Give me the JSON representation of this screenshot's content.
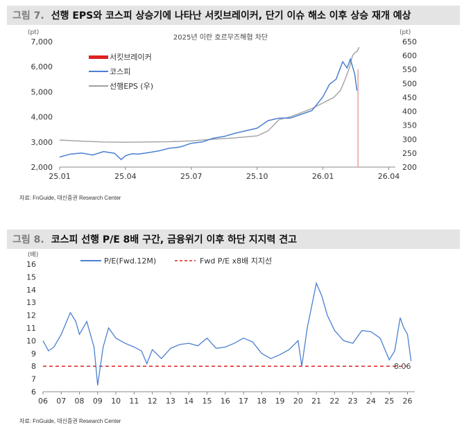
{
  "figure7": {
    "number": "그림 7.",
    "title": "선행 EPS와 코스피 상승기에 나타난 서킷브레이커, 단기 이슈 해소 이후 상승 재개 예상",
    "source": "자료: FnGuide, 대신증권 Research Center"
  },
  "figure8": {
    "number": "그림 8.",
    "title": "코스피 선행 P/E 8배 구간, 금융위기 이후 하단 지지력 견고",
    "source": "자료: FnGuide, 대신증권 Research Center"
  },
  "colors": {
    "blue": "#4a7fd0",
    "gray": "#a0a0a0",
    "red": "#e02020",
    "pink": "#e8a0a0"
  },
  "chart_data": [
    {
      "type": "line",
      "annotation": "2025년 이란 호르무즈해협 차단",
      "y_unit_left": "(pt)",
      "y_unit_right": "(pt)",
      "ylim": [
        2000,
        7000
      ],
      "ylim_right": [
        200,
        650
      ],
      "yticks": [
        "2,000",
        "3,000",
        "4,000",
        "5,000",
        "6,000",
        "7,000"
      ],
      "yticks_right": [
        "200",
        "250",
        "300",
        "350",
        "400",
        "450",
        "500",
        "550",
        "600",
        "650"
      ],
      "xticks": [
        "25.01",
        "25.04",
        "25.07",
        "25.10",
        "26.01",
        "26.04"
      ],
      "xlim": [
        0,
        15.3
      ],
      "marker_x": 13.6,
      "series": [
        {
          "name": "서킷브레이커",
          "axis": "left",
          "style": "bar",
          "values": []
        },
        {
          "name": "코스피",
          "axis": "left",
          "x": [
            0,
            0.5,
            1,
            1.5,
            2,
            2.5,
            2.8,
            3,
            3.3,
            3.6,
            4,
            4.5,
            5,
            5.5,
            6,
            6.5,
            7,
            7.5,
            8,
            8.5,
            9,
            9.5,
            10,
            10.5,
            11,
            11.5,
            12,
            12.3,
            12.6,
            12.9,
            13.1,
            13.25,
            13.35,
            13.45,
            13.55
          ],
          "values": [
            2400,
            2520,
            2560,
            2480,
            2620,
            2550,
            2300,
            2450,
            2530,
            2520,
            2570,
            2640,
            2750,
            2800,
            2950,
            3000,
            3150,
            3220,
            3350,
            3450,
            3550,
            3850,
            3950,
            3950,
            4100,
            4250,
            4800,
            5300,
            5500,
            6200,
            5950,
            6300,
            6000,
            5700,
            5050
          ]
        },
        {
          "name": "선행EPS (우)",
          "axis": "right",
          "x": [
            0,
            1,
            2,
            3,
            4,
            5,
            6,
            7,
            8,
            9,
            9.5,
            10,
            10.5,
            11,
            11.5,
            12,
            12.5,
            12.8,
            13,
            13.2,
            13.35,
            13.45,
            13.55,
            13.65
          ],
          "values": [
            297,
            293,
            290,
            289,
            290,
            291,
            294,
            300,
            305,
            312,
            330,
            370,
            380,
            395,
            410,
            430,
            450,
            475,
            512,
            555,
            600,
            610,
            615,
            630
          ]
        }
      ]
    },
    {
      "type": "line",
      "y_unit": "(배)",
      "ylim": [
        6,
        16
      ],
      "yticks": [
        "6",
        "7",
        "8",
        "9",
        "10",
        "11",
        "12",
        "13",
        "14",
        "15",
        "16"
      ],
      "xticks": [
        "06",
        "07",
        "08",
        "09",
        "10",
        "11",
        "12",
        "13",
        "14",
        "15",
        "16",
        "17",
        "18",
        "19",
        "20",
        "21",
        "22",
        "23",
        "24",
        "25",
        "26"
      ],
      "xlim": [
        2006,
        2026.4
      ],
      "series": [
        {
          "name": "P/E(Fwd.12M)",
          "x": [
            2006,
            2006.3,
            2006.6,
            2007,
            2007.5,
            2007.8,
            2008,
            2008.4,
            2008.8,
            2009,
            2009.3,
            2009.6,
            2010,
            2010.5,
            2011,
            2011.4,
            2011.7,
            2012,
            2012.5,
            2013,
            2013.5,
            2014,
            2014.5,
            2015,
            2015.5,
            2016,
            2016.5,
            2017,
            2017.5,
            2018,
            2018.5,
            2019,
            2019.5,
            2020,
            2020.2,
            2020.5,
            2021,
            2021.3,
            2021.6,
            2022,
            2022.5,
            2023,
            2023.5,
            2024,
            2024.5,
            2025,
            2025.3,
            2025.6,
            2025.8,
            2026,
            2026.2
          ],
          "values": [
            10,
            9.2,
            9.5,
            10.5,
            12.2,
            11.5,
            10.5,
            11.5,
            9.5,
            6.5,
            9.5,
            11,
            10.2,
            9.8,
            9.5,
            9.2,
            8.2,
            9.3,
            8.6,
            9.4,
            9.7,
            9.8,
            9.6,
            10.2,
            9.4,
            9.5,
            9.8,
            10.2,
            9.9,
            9,
            8.6,
            8.9,
            9.3,
            10,
            8,
            11,
            14.5,
            13.5,
            12,
            10.8,
            10,
            9.8,
            10.8,
            10.7,
            10.2,
            8.5,
            9.2,
            11.8,
            11.0,
            10.5,
            8.4
          ]
        },
        {
          "name": "Fwd P/E x8배 지지선",
          "style": "dashed",
          "values": [
            8,
            8
          ]
        }
      ],
      "end_label": "8.06"
    }
  ]
}
